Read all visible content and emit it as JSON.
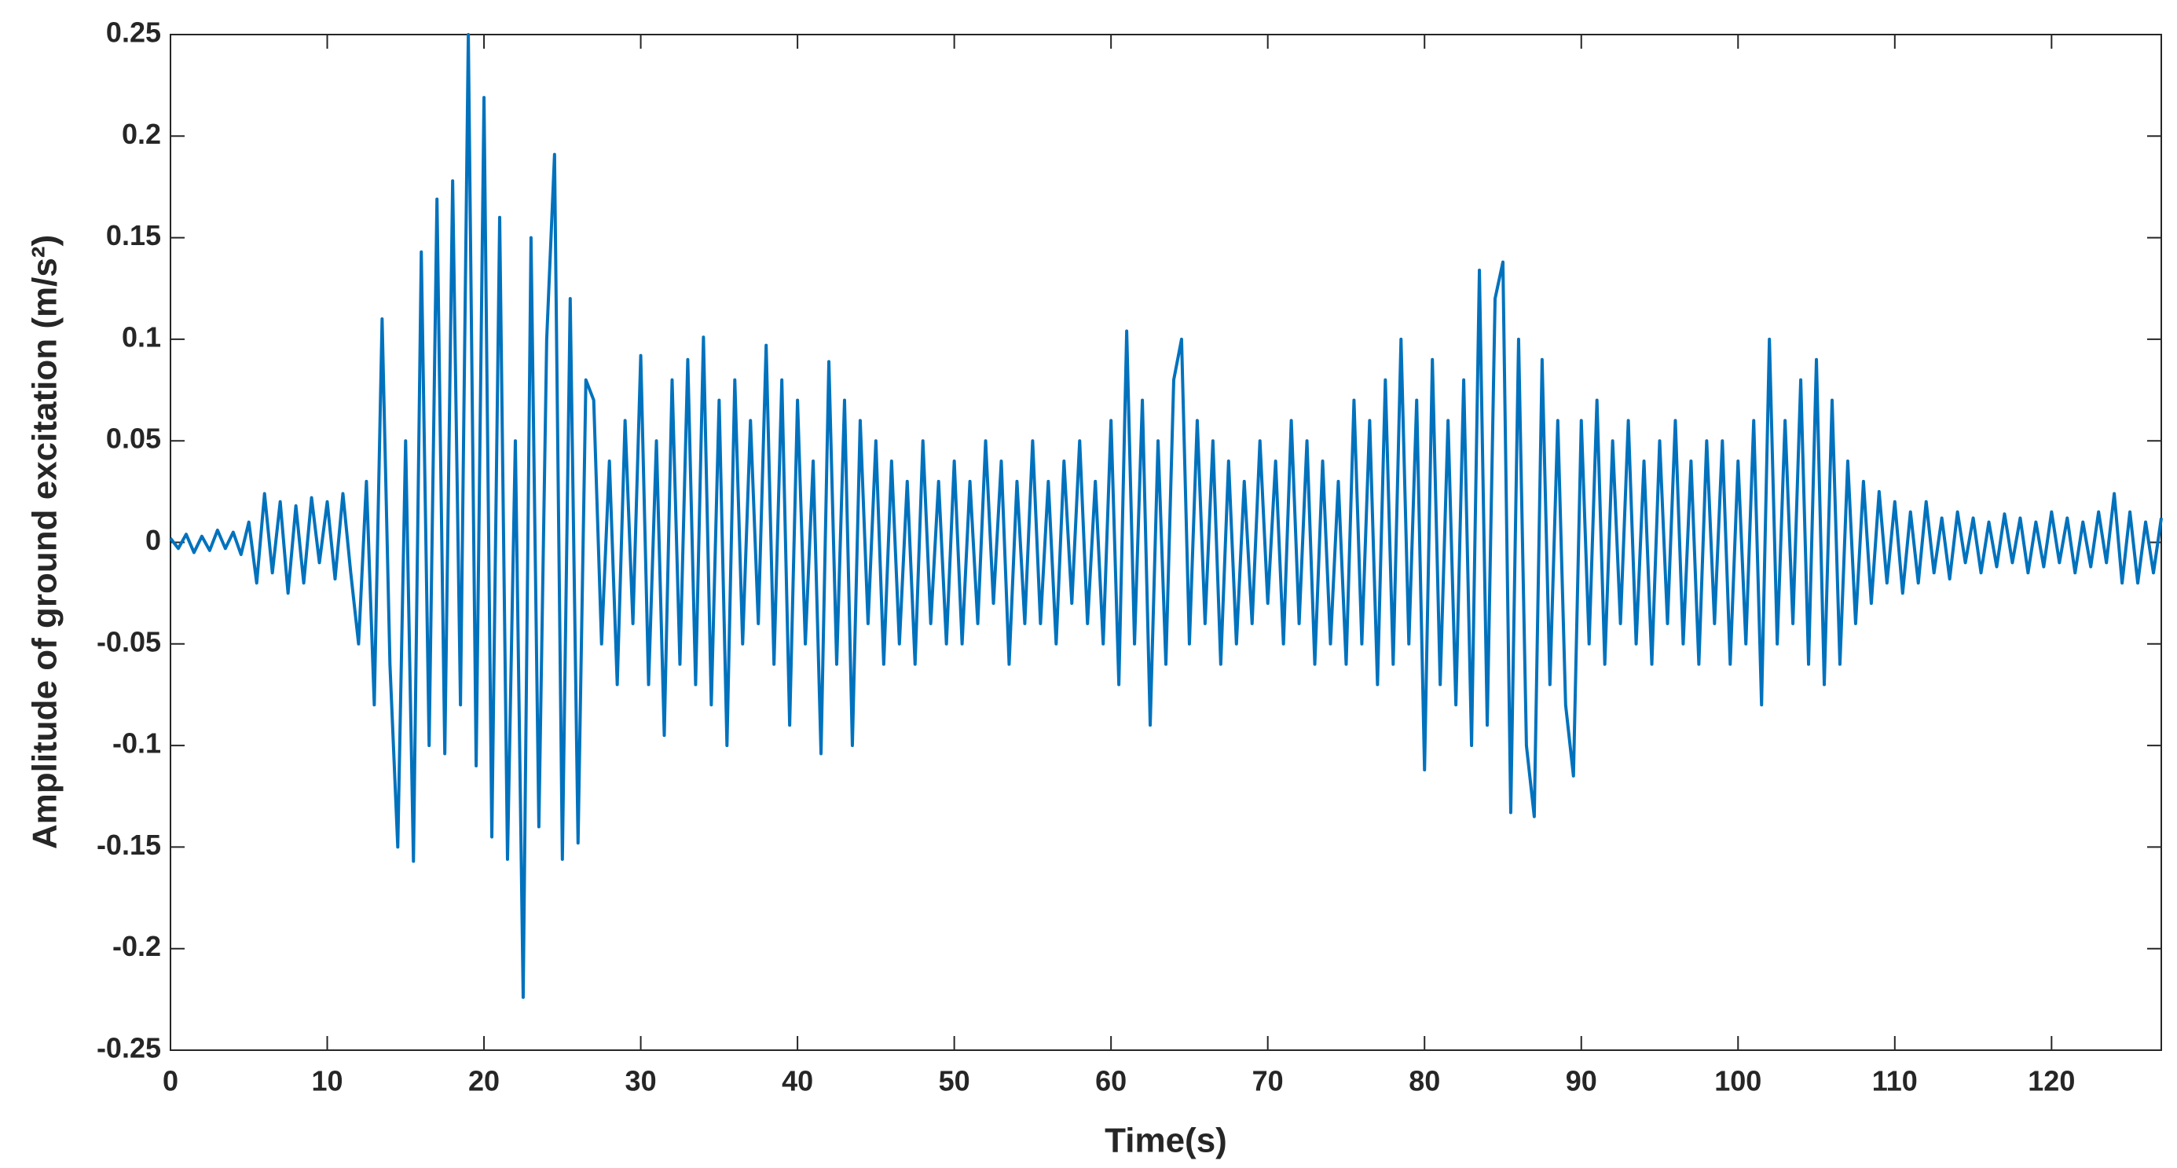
{
  "chart_data": {
    "type": "line",
    "x_label": "Time(s)",
    "y_label": "Amplitude of ground excitation (m/s²)",
    "x": [
      0,
      0.5,
      1,
      1.5,
      2,
      2.5,
      3,
      3.5,
      4,
      4.5,
      5,
      5.5,
      6,
      6.5,
      7,
      7.5,
      8,
      8.5,
      9,
      9.5,
      10,
      10.5,
      11,
      11.5,
      12,
      12.5,
      13,
      13.5,
      14,
      14.5,
      15,
      15.5,
      16,
      16.5,
      17,
      17.5,
      18,
      18.5,
      19,
      19.5,
      20,
      20.5,
      21,
      21.5,
      22,
      22.5,
      23,
      23.5,
      24,
      24.5,
      25,
      25.5,
      26,
      26.5,
      27,
      27.5,
      28,
      28.5,
      29,
      29.5,
      30,
      30.5,
      31,
      31.5,
      32,
      32.5,
      33,
      33.5,
      34,
      34.5,
      35,
      35.5,
      36,
      36.5,
      37,
      37.5,
      38,
      38.5,
      39,
      39.5,
      40,
      40.5,
      41,
      41.5,
      42,
      42.5,
      43,
      43.5,
      44,
      44.5,
      45,
      45.5,
      46,
      46.5,
      47,
      47.5,
      48,
      48.5,
      49,
      49.5,
      50,
      50.5,
      51,
      51.5,
      52,
      52.5,
      53,
      53.5,
      54,
      54.5,
      55,
      55.5,
      56,
      56.5,
      57,
      57.5,
      58,
      58.5,
      59,
      59.5,
      60,
      60.5,
      61,
      61.5,
      62,
      62.5,
      63,
      63.5,
      64,
      64.5,
      65,
      65.5,
      66,
      66.5,
      67,
      67.5,
      68,
      68.5,
      69,
      69.5,
      70,
      70.5,
      71,
      71.5,
      72,
      72.5,
      73,
      73.5,
      74,
      74.5,
      75,
      75.5,
      76,
      76.5,
      77,
      77.5,
      78,
      78.5,
      79,
      79.5,
      80,
      80.5,
      81,
      81.5,
      82,
      82.5,
      83,
      83.5,
      84,
      84.5,
      85,
      85.5,
      86,
      86.5,
      87,
      87.5,
      88,
      88.5,
      89,
      89.5,
      90,
      90.5,
      91,
      91.5,
      92,
      92.5,
      93,
      93.5,
      94,
      94.5,
      95,
      95.5,
      96,
      96.5,
      97,
      97.5,
      98,
      98.5,
      99,
      99.5,
      100,
      100.5,
      101,
      101.5,
      102,
      102.5,
      103,
      103.5,
      104,
      104.5,
      105,
      105.5,
      106,
      106.5,
      107,
      107.5,
      108,
      108.5,
      109,
      109.5,
      110,
      110.5,
      111,
      111.5,
      112,
      112.5,
      113,
      113.5,
      114,
      114.5,
      115,
      115.5,
      116,
      116.5,
      117,
      117.5,
      118,
      118.5,
      119,
      119.5,
      120,
      120.5,
      121,
      121.5,
      122,
      122.5,
      123,
      123.5,
      124,
      124.5,
      125,
      125.5,
      126,
      126.5,
      127
    ],
    "series": [
      {
        "color": "#0072bd",
        "values": [
          0.002,
          -0.003,
          0.004,
          -0.005,
          0.003,
          -0.004,
          0.006,
          -0.003,
          0.005,
          -0.006,
          0.01,
          -0.02,
          0.024,
          -0.015,
          0.02,
          -0.025,
          0.018,
          -0.02,
          0.022,
          -0.01,
          0.02,
          -0.018,
          0.024,
          -0.015,
          -0.05,
          0.03,
          -0.08,
          0.11,
          -0.06,
          -0.15,
          0.05,
          -0.157,
          0.143,
          -0.1,
          0.169,
          -0.104,
          0.178,
          -0.08,
          0.25,
          -0.11,
          0.219,
          -0.145,
          0.16,
          -0.156,
          0.05,
          -0.224,
          0.15,
          -0.14,
          0.1,
          0.191,
          -0.156,
          0.12,
          -0.148,
          0.08,
          0.07,
          -0.05,
          0.04,
          -0.07,
          0.06,
          -0.04,
          0.092,
          -0.07,
          0.05,
          -0.095,
          0.08,
          -0.06,
          0.09,
          -0.07,
          0.101,
          -0.08,
          0.07,
          -0.1,
          0.08,
          -0.05,
          0.06,
          -0.04,
          0.097,
          -0.06,
          0.08,
          -0.09,
          0.07,
          -0.05,
          0.04,
          -0.104,
          0.089,
          -0.06,
          0.07,
          -0.1,
          0.06,
          -0.04,
          0.05,
          -0.06,
          0.04,
          -0.05,
          0.03,
          -0.06,
          0.05,
          -0.04,
          0.03,
          -0.05,
          0.04,
          -0.05,
          0.03,
          -0.04,
          0.05,
          -0.03,
          0.04,
          -0.06,
          0.03,
          -0.04,
          0.05,
          -0.04,
          0.03,
          -0.05,
          0.04,
          -0.03,
          0.05,
          -0.04,
          0.03,
          -0.05,
          0.06,
          -0.07,
          0.104,
          -0.05,
          0.07,
          -0.09,
          0.05,
          -0.06,
          0.08,
          0.1,
          -0.05,
          0.06,
          -0.04,
          0.05,
          -0.06,
          0.04,
          -0.05,
          0.03,
          -0.04,
          0.05,
          -0.03,
          0.04,
          -0.05,
          0.06,
          -0.04,
          0.05,
          -0.06,
          0.04,
          -0.05,
          0.03,
          -0.06,
          0.07,
          -0.05,
          0.06,
          -0.07,
          0.08,
          -0.06,
          0.1,
          -0.05,
          0.07,
          -0.112,
          0.09,
          -0.07,
          0.06,
          -0.08,
          0.08,
          -0.1,
          0.134,
          -0.09,
          0.12,
          0.138,
          -0.133,
          0.1,
          -0.1,
          -0.135,
          0.09,
          -0.07,
          0.06,
          -0.08,
          -0.115,
          0.06,
          -0.05,
          0.07,
          -0.06,
          0.05,
          -0.04,
          0.06,
          -0.05,
          0.04,
          -0.06,
          0.05,
          -0.04,
          0.06,
          -0.05,
          0.04,
          -0.06,
          0.05,
          -0.04,
          0.05,
          -0.06,
          0.04,
          -0.05,
          0.06,
          -0.08,
          0.1,
          -0.05,
          0.06,
          -0.04,
          0.08,
          -0.06,
          0.09,
          -0.07,
          0.07,
          -0.06,
          0.04,
          -0.04,
          0.03,
          -0.03,
          0.025,
          -0.02,
          0.02,
          -0.025,
          0.015,
          -0.02,
          0.02,
          -0.015,
          0.012,
          -0.018,
          0.015,
          -0.01,
          0.012,
          -0.015,
          0.01,
          -0.012,
          0.014,
          -0.01,
          0.012,
          -0.015,
          0.01,
          -0.012,
          0.015,
          -0.01,
          0.012,
          -0.015,
          0.01,
          -0.012,
          0.015,
          -0.01,
          0.024,
          -0.02,
          0.015,
          -0.02,
          0.01,
          -0.015,
          0.012
        ]
      }
    ],
    "xlim": [
      0,
      127
    ],
    "xticks": [
      0,
      10,
      20,
      30,
      40,
      50,
      60,
      70,
      80,
      90,
      100,
      110,
      120
    ],
    "ylim": [
      -0.25,
      0.25
    ],
    "yticks": [
      -0.25,
      -0.2,
      -0.15,
      -0.1,
      -0.05,
      0,
      0.05,
      0.1,
      0.15,
      0.2,
      0.25
    ],
    "grid": false
  }
}
